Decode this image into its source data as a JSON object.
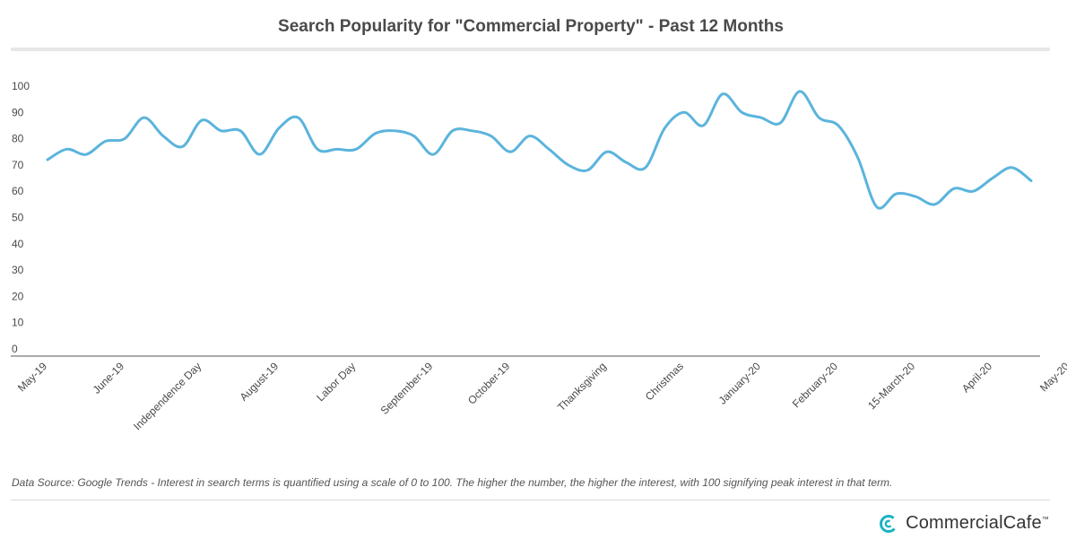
{
  "chart_data": {
    "type": "line",
    "title": "Search Popularity for \"Commercial Property\" - Past 12 Months",
    "xlabel": "",
    "ylabel": "",
    "ylim": [
      0,
      100
    ],
    "yticks": [
      0,
      10,
      20,
      30,
      40,
      50,
      60,
      70,
      80,
      90,
      100
    ],
    "grid": false,
    "line_color": "#5bb4dc",
    "x_tick_labels": [
      {
        "label": "May-19",
        "index": 0
      },
      {
        "label": "June-19",
        "index": 4
      },
      {
        "label": "Independence Day",
        "index": 8
      },
      {
        "label": "August-19",
        "index": 12
      },
      {
        "label": "Labor Day",
        "index": 16
      },
      {
        "label": "September-19",
        "index": 20
      },
      {
        "label": "October-19",
        "index": 24
      },
      {
        "label": "Thanksgiving",
        "index": 29
      },
      {
        "label": "Christmas",
        "index": 33
      },
      {
        "label": "January-20",
        "index": 37
      },
      {
        "label": "February-20",
        "index": 41
      },
      {
        "label": "15-March-20",
        "index": 45
      },
      {
        "label": "April-20",
        "index": 49
      },
      {
        "label": "May-20",
        "index": 53
      }
    ],
    "series": [
      {
        "values": [
          72,
          76,
          74,
          79,
          80,
          88,
          81,
          77,
          87,
          83,
          83,
          74,
          84,
          88,
          76,
          76,
          76,
          82,
          83,
          81,
          74,
          83,
          83,
          81,
          75,
          81,
          76,
          70,
          68,
          75,
          71,
          69,
          84,
          90,
          85,
          97,
          90,
          88,
          86,
          98,
          88,
          85,
          73,
          54,
          59,
          58,
          55,
          61,
          60,
          65,
          69,
          64
        ]
      }
    ]
  },
  "footer": {
    "source": "Data Source: Google Trends - Interest in search terms is quantified using a scale of 0 to 100. The higher the number, the higher the interest, with 100 signifying peak interest in that term.",
    "brand": "CommercialCafe",
    "brand_mark": "™"
  }
}
